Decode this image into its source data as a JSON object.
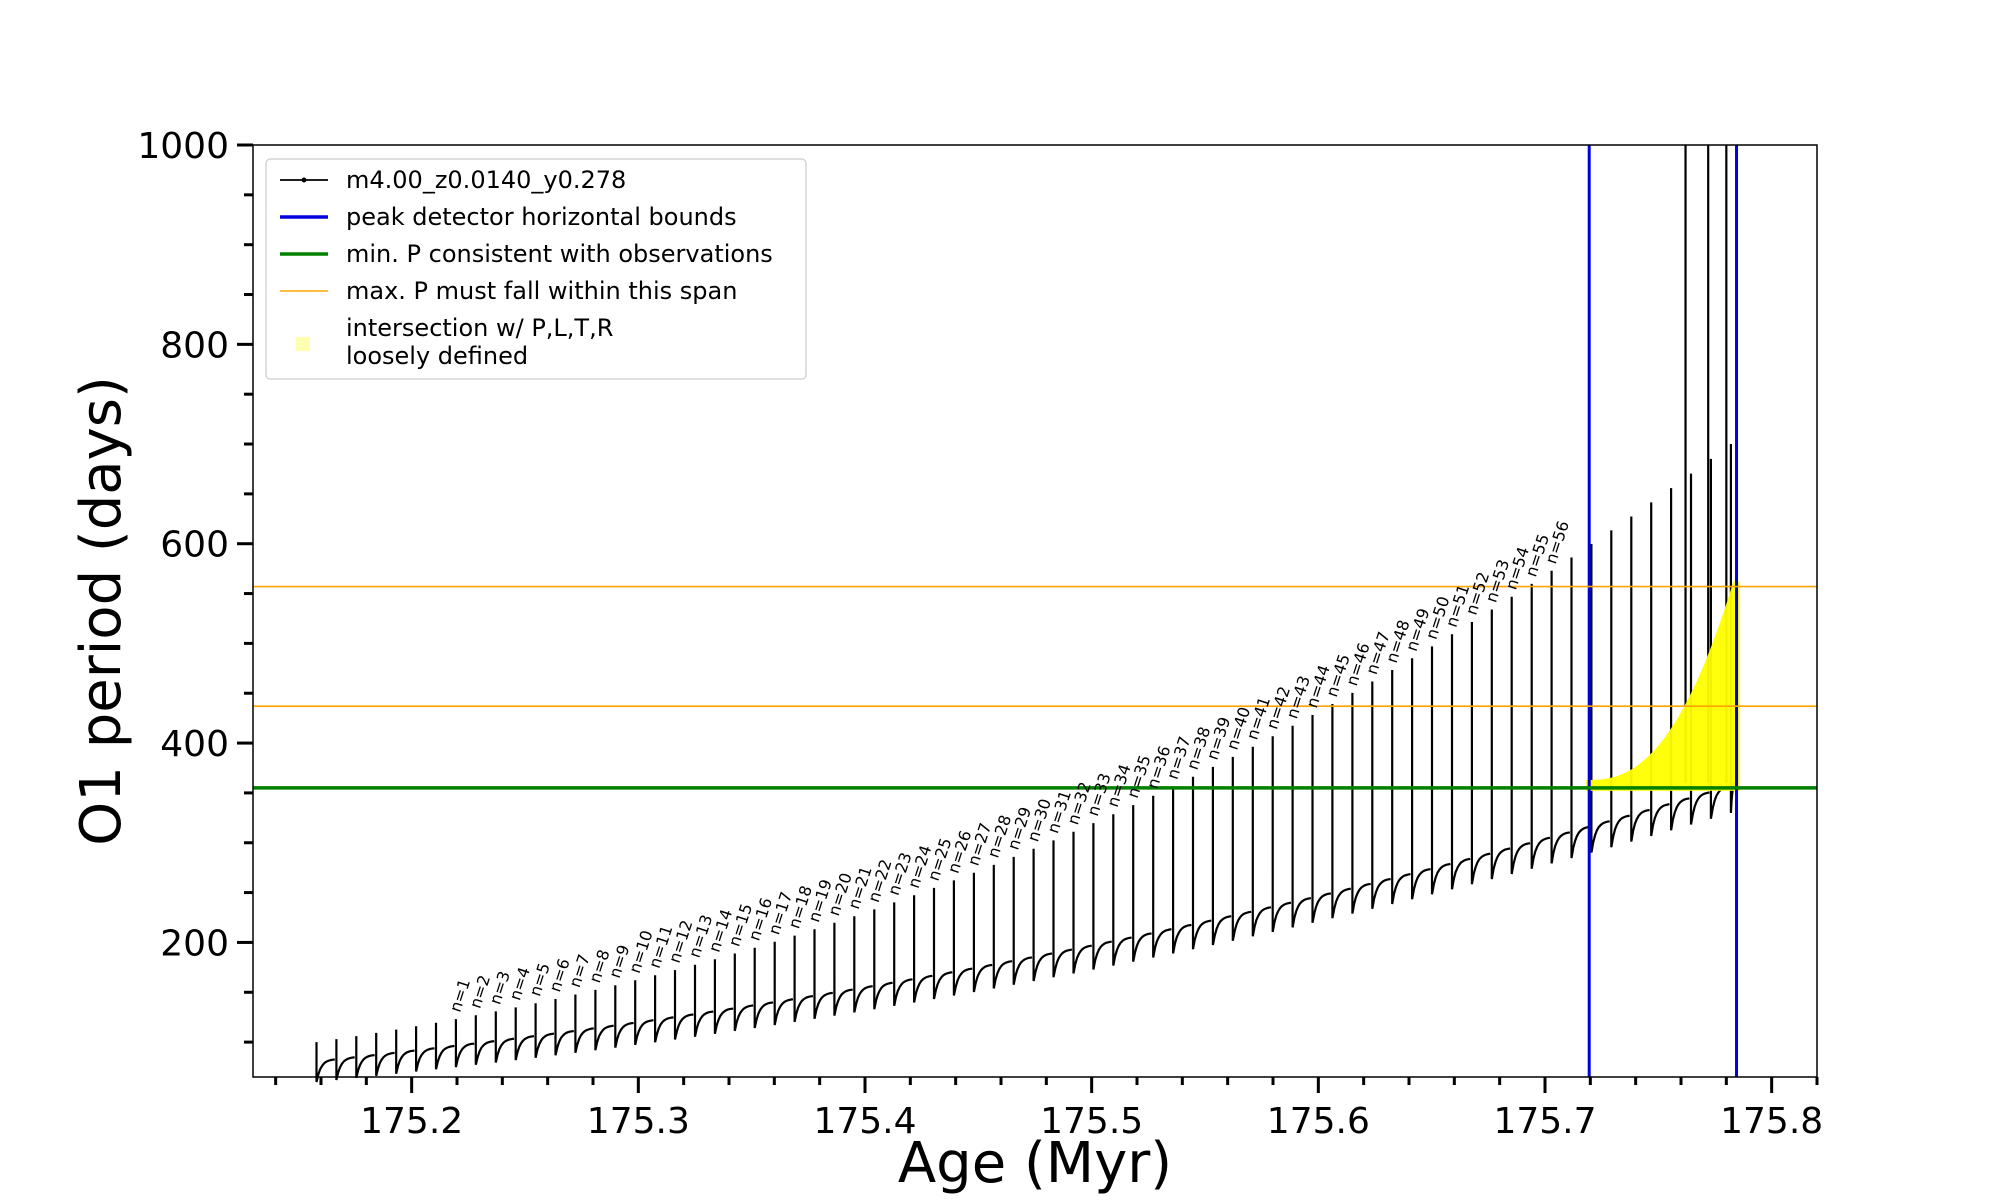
{
  "chart_data": {
    "type": "line",
    "xlabel": "Age (Myr)",
    "ylabel": "O1 period (days)",
    "xlim": [
      175.13,
      175.82
    ],
    "ylim": [
      65,
      1000
    ],
    "xticks": [
      175.2,
      175.3,
      175.4,
      175.5,
      175.6,
      175.7,
      175.8
    ],
    "xtick_labels": [
      "175.2",
      "175.3",
      "175.4",
      "175.5",
      "175.6",
      "175.7",
      "175.8"
    ],
    "yticks": [
      200,
      400,
      600,
      800,
      1000
    ],
    "ytick_labels": [
      "200",
      "400",
      "600",
      "800",
      "1000"
    ],
    "grid": false,
    "legend_position": "top-left",
    "series": [
      {
        "name": "m4.00_z0.0140_y0.278",
        "color": "#000000",
        "style": "line-with-dots",
        "pulse_count": 72,
        "x_start": 175.158,
        "x_end": 175.782,
        "baseline_start": 75,
        "baseline_end": 355,
        "peak_start": 100,
        "peak_end": 700
      }
    ],
    "reference_lines": [
      {
        "name": "peak detector horizontal bounds",
        "orientation": "vertical",
        "values": [
          175.7195,
          175.7845
        ],
        "color": "#0000dd"
      },
      {
        "name": "min. P consistent with observations",
        "orientation": "horizontal",
        "values": [
          355
        ],
        "color": "#008000"
      },
      {
        "name": "max. P must fall within this span",
        "orientation": "horizontal",
        "values": [
          437,
          557
        ],
        "color": "#ffa500"
      }
    ],
    "highlight": {
      "name": "intersection w/ P,L,T,R\nloosely defined",
      "legend_lines": [
        "intersection w/ P,L,T,R",
        "loosely defined"
      ],
      "color": "#ffff00",
      "x_range": [
        175.7195,
        175.7845
      ],
      "y_range": [
        355,
        557
      ]
    },
    "peak_labels": {
      "prefix": "n=",
      "first": 1,
      "last": 56,
      "labels": [
        "n=1",
        "n=2",
        "n=3",
        "n=4",
        "n=5",
        "n=6",
        "n=7",
        "n=8",
        "n=9",
        "n=10",
        "n=11",
        "n=12",
        "n=13",
        "n=14",
        "n=15",
        "n=16",
        "n=17",
        "n=18",
        "n=19",
        "n=20",
        "n=21",
        "n=22",
        "n=23",
        "n=24",
        "n=25",
        "n=26",
        "n=27",
        "n=28",
        "n=29",
        "n=30",
        "n=31",
        "n=32",
        "n=33",
        "n=34",
        "n=35",
        "n=36",
        "n=37",
        "n=38",
        "n=39",
        "n=40",
        "n=41",
        "n=42",
        "n=43",
        "n=44",
        "n=45",
        "n=46",
        "n=47",
        "n=48",
        "n=49",
        "n=50",
        "n=51",
        "n=52",
        "n=53",
        "n=54",
        "n=55",
        "n=56"
      ]
    }
  }
}
